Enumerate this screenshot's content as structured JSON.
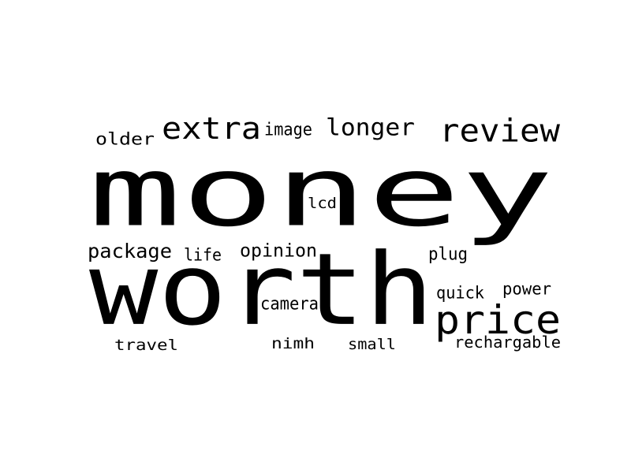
{
  "text_color": "#000000",
  "background_color": "#ffffff",
  "words": [
    {
      "id": "money",
      "text": "money"
    },
    {
      "id": "worth",
      "text": "worth"
    },
    {
      "id": "price",
      "text": "price"
    },
    {
      "id": "review",
      "text": "review"
    },
    {
      "id": "extra",
      "text": "extra"
    },
    {
      "id": "longer",
      "text": "longer"
    },
    {
      "id": "image",
      "text": "image"
    },
    {
      "id": "older",
      "text": "older"
    },
    {
      "id": "lcd",
      "text": "lcd"
    },
    {
      "id": "package",
      "text": "package"
    },
    {
      "id": "life",
      "text": "life"
    },
    {
      "id": "opinion",
      "text": "opinion"
    },
    {
      "id": "plug",
      "text": "plug"
    },
    {
      "id": "quick",
      "text": "quick"
    },
    {
      "id": "power",
      "text": "power"
    },
    {
      "id": "camera",
      "text": "camera"
    },
    {
      "id": "travel",
      "text": "travel"
    },
    {
      "id": "nimh",
      "text": "nimh"
    },
    {
      "id": "small",
      "text": "small"
    },
    {
      "id": "rechargable",
      "text": "rechargable"
    }
  ]
}
